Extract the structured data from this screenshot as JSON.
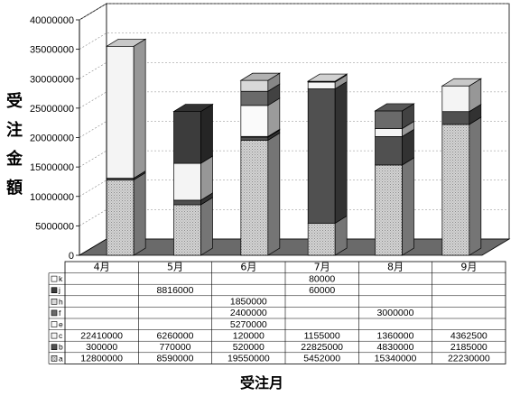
{
  "chart_data": {
    "type": "bar",
    "stacked": true,
    "three_d": true,
    "title": "",
    "ylabel": "受注金額",
    "xlabel": "受注月",
    "ylim": [
      0,
      40000000
    ],
    "yticks": [
      0,
      5000000,
      10000000,
      15000000,
      20000000,
      25000000,
      30000000,
      35000000,
      40000000
    ],
    "ytick_labels": [
      "0",
      "5000000",
      "10000000",
      "15000000",
      "20000000",
      "25000000",
      "30000000",
      "35000000",
      "40000000"
    ],
    "grid": "horizontal dashed",
    "categories": [
      "4月",
      "5月",
      "6月",
      "7月",
      "8月",
      "9月"
    ],
    "series": [
      {
        "name": "a",
        "values": [
          12800000,
          8590000,
          19550000,
          5452000,
          15340000,
          22230000
        ],
        "labels": [
          "12800000",
          "8590000",
          "19550000",
          "5452000",
          "15340000",
          "22230000"
        ],
        "color": "#bdbdbd"
      },
      {
        "name": "b",
        "values": [
          300000,
          770000,
          520000,
          22825000,
          4830000,
          2185000
        ],
        "labels": [
          "300000",
          "770000",
          "520000",
          "22825000",
          "4830000",
          "2185000"
        ],
        "color": "#505050"
      },
      {
        "name": "c",
        "values": [
          22410000,
          6260000,
          120000,
          1155000,
          1360000,
          4362500
        ],
        "labels": [
          "22410000",
          "6260000",
          "120000",
          "1155000",
          "1360000",
          "4362500"
        ],
        "color": "#f4f4f4"
      },
      {
        "name": "e",
        "values": [
          0,
          0,
          5270000,
          0,
          0,
          0
        ],
        "labels": [
          "",
          "",
          "5270000",
          "",
          "",
          ""
        ],
        "color": "#fafafa"
      },
      {
        "name": "f",
        "values": [
          0,
          0,
          2400000,
          0,
          3000000,
          0
        ],
        "labels": [
          "",
          "",
          "2400000",
          "",
          "3000000",
          ""
        ],
        "color": "#6a6a6a"
      },
      {
        "name": "h",
        "values": [
          0,
          0,
          1850000,
          0,
          0,
          0
        ],
        "labels": [
          "",
          "",
          "1850000",
          "",
          "",
          ""
        ],
        "color": "#d8d8d8"
      },
      {
        "name": "j",
        "values": [
          0,
          8816000,
          0,
          60000,
          0,
          0
        ],
        "labels": [
          "",
          "8816000",
          "",
          "60000",
          "",
          ""
        ],
        "color": "#3c3c3c"
      },
      {
        "name": "k",
        "values": [
          0,
          0,
          0,
          80000,
          0,
          0
        ],
        "labels": [
          "",
          "",
          "",
          "80000",
          "",
          ""
        ],
        "color": "#ffffff"
      }
    ],
    "table_rows_top_to_bottom": [
      "k",
      "j",
      "h",
      "f",
      "e",
      "c",
      "b",
      "a"
    ]
  }
}
